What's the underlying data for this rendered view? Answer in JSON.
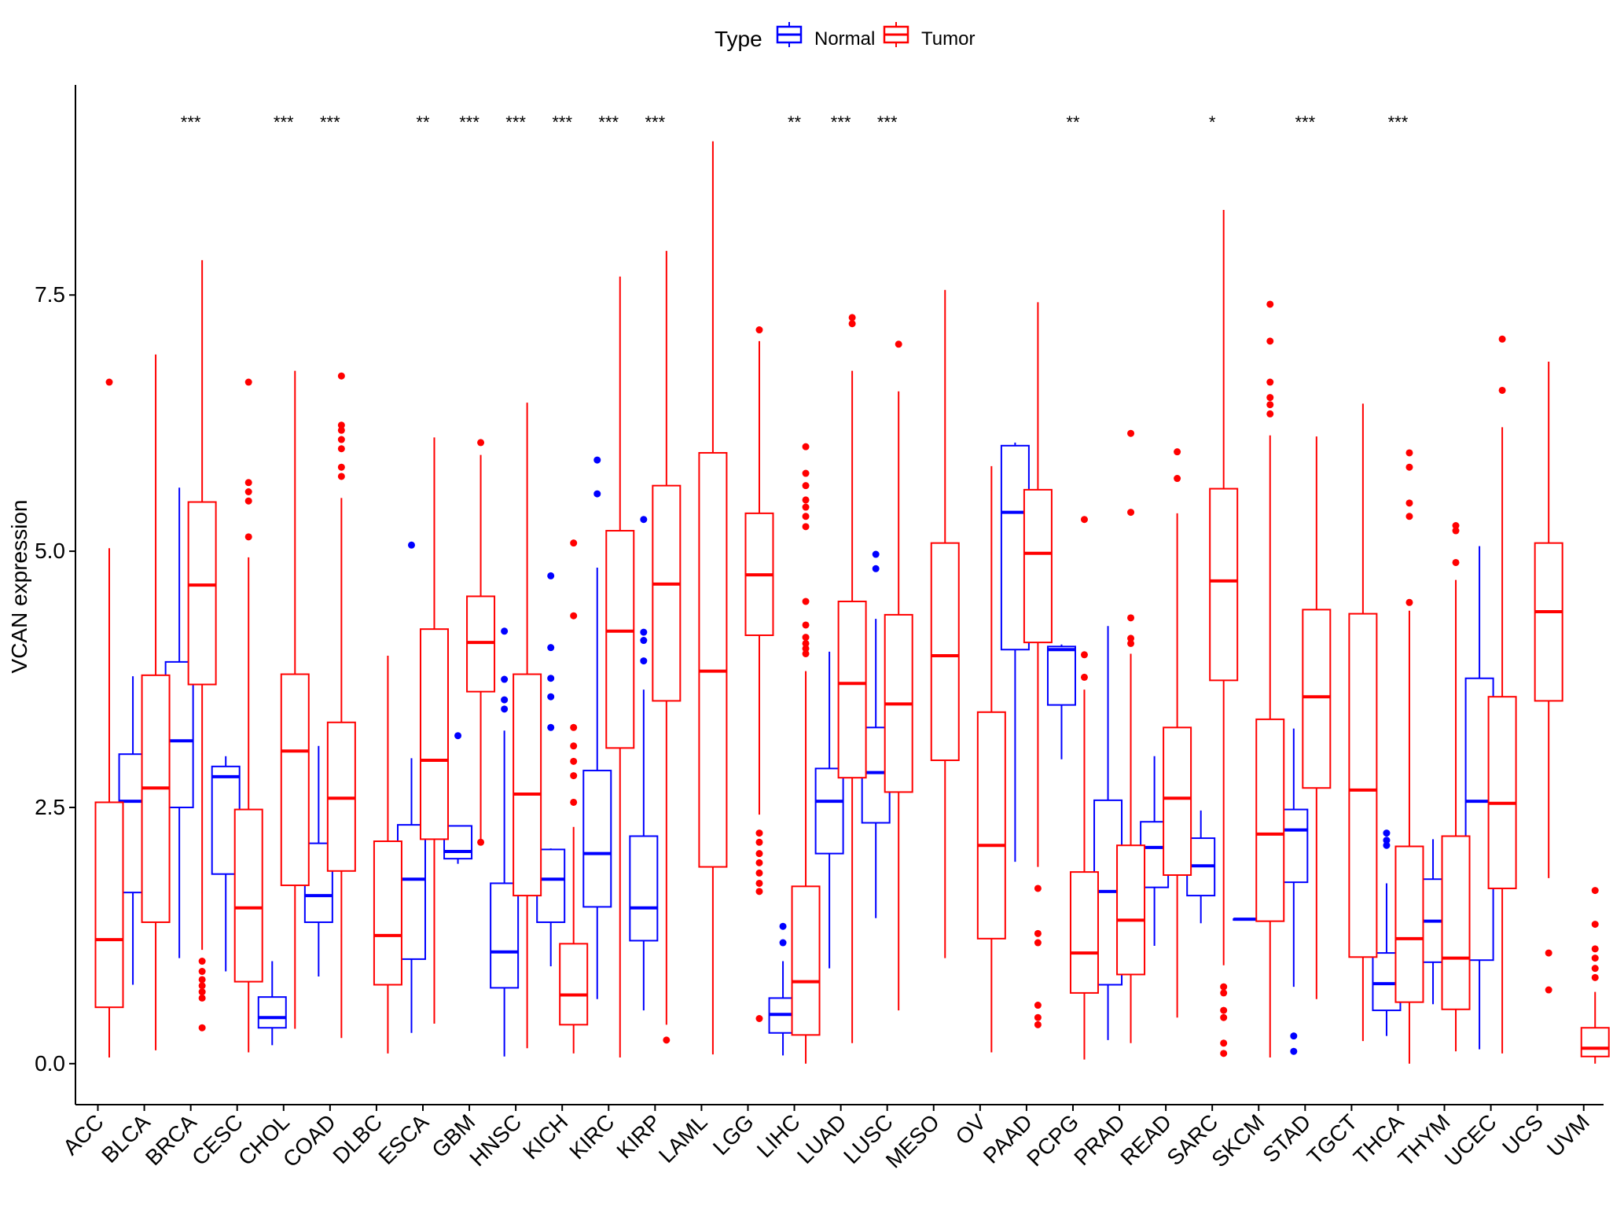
{
  "chart_data": {
    "type": "box",
    "xlabel": "",
    "ylabel": "VCAN expression",
    "ylim": [
      -0.4,
      9.55
    ],
    "yticks": [
      "0.0",
      "2.5",
      "5.0",
      "7.5"
    ],
    "ytick_values": [
      0,
      2.5,
      5,
      7.5
    ],
    "legend": {
      "title": "Type",
      "position": "top",
      "items": [
        {
          "label": "Normal",
          "color": "#0000ff"
        },
        {
          "label": "Tumor",
          "color": "#ff0000"
        }
      ]
    },
    "colors": {
      "Normal": "#0000ff",
      "Tumor": "#ff0000"
    },
    "categories": [
      "ACC",
      "BLCA",
      "BRCA",
      "CESC",
      "CHOL",
      "COAD",
      "DLBC",
      "ESCA",
      "GBM",
      "HNSC",
      "KICH",
      "KIRC",
      "KIRP",
      "LAML",
      "LGG",
      "LIHC",
      "LUAD",
      "LUSC",
      "MESO",
      "OV",
      "PAAD",
      "PCPG",
      "PRAD",
      "READ",
      "SARC",
      "SKCM",
      "STAD",
      "TGCT",
      "THCA",
      "THYM",
      "UCEC",
      "UCS",
      "UVM"
    ],
    "significance": [
      "",
      "",
      "***",
      "",
      "***",
      "***",
      "",
      "**",
      "***",
      "***",
      "***",
      "***",
      "***",
      "",
      "",
      "**",
      "***",
      "***",
      "",
      "",
      "",
      "**",
      "",
      "",
      "*",
      "",
      "***",
      "",
      "***",
      "",
      "",
      "",
      ""
    ],
    "series": [
      {
        "name": "Normal",
        "boxes": [
          null,
          {
            "whislo": 0.77,
            "q1": 1.67,
            "med": 2.56,
            "q3": 3.02,
            "whishi": 3.78,
            "fliers": []
          },
          {
            "whislo": 1.03,
            "q1": 2.5,
            "med": 3.15,
            "q3": 3.92,
            "whishi": 5.62,
            "fliers": []
          },
          {
            "whislo": 0.9,
            "q1": 1.85,
            "med": 2.8,
            "q3": 2.9,
            "whishi": 3.0,
            "fliers": []
          },
          {
            "whislo": 0.18,
            "q1": 0.35,
            "med": 0.45,
            "q3": 0.65,
            "whishi": 1.0,
            "fliers": []
          },
          {
            "whislo": 0.85,
            "q1": 1.38,
            "med": 1.64,
            "q3": 2.15,
            "whishi": 3.1,
            "fliers": []
          },
          null,
          {
            "whislo": 0.3,
            "q1": 1.02,
            "med": 1.8,
            "q3": 2.33,
            "whishi": 2.98,
            "fliers": [
              5.06
            ]
          },
          {
            "whislo": 1.95,
            "q1": 2.0,
            "med": 2.07,
            "q3": 2.32,
            "whishi": 2.32,
            "fliers": [
              3.2
            ]
          },
          {
            "whislo": 0.07,
            "q1": 0.74,
            "med": 1.09,
            "q3": 1.76,
            "whishi": 3.25,
            "fliers": [
              3.46,
              3.55,
              3.75,
              4.22
            ]
          },
          {
            "whislo": 0.95,
            "q1": 1.38,
            "med": 1.8,
            "q3": 2.09,
            "whishi": 2.1,
            "fliers": [
              3.28,
              3.58,
              3.76,
              4.06,
              4.76
            ]
          },
          {
            "whislo": 0.63,
            "q1": 1.53,
            "med": 2.05,
            "q3": 2.86,
            "whishi": 4.84,
            "fliers": [
              5.56,
              5.89
            ]
          },
          {
            "whislo": 0.52,
            "q1": 1.2,
            "med": 1.52,
            "q3": 2.22,
            "whishi": 3.65,
            "fliers": [
              3.93,
              4.13,
              4.21,
              5.31
            ]
          },
          null,
          null,
          {
            "whislo": 0.08,
            "q1": 0.3,
            "med": 0.48,
            "q3": 0.64,
            "whishi": 1.0,
            "fliers": [
              1.18,
              1.34
            ]
          },
          {
            "whislo": 0.93,
            "q1": 2.05,
            "med": 2.56,
            "q3": 2.88,
            "whishi": 4.02,
            "fliers": []
          },
          {
            "whislo": 1.42,
            "q1": 2.35,
            "med": 2.84,
            "q3": 3.28,
            "whishi": 4.34,
            "fliers": [
              4.83,
              4.97
            ]
          },
          null,
          null,
          {
            "whislo": 1.97,
            "q1": 4.04,
            "med": 5.38,
            "q3": 6.03,
            "whishi": 6.06,
            "fliers": []
          },
          {
            "whislo": 2.97,
            "q1": 3.5,
            "med": 4.04,
            "q3": 4.07,
            "whishi": 4.09,
            "fliers": []
          },
          {
            "whislo": 0.23,
            "q1": 0.77,
            "med": 1.68,
            "q3": 2.57,
            "whishi": 4.27,
            "fliers": []
          },
          {
            "whislo": 1.15,
            "q1": 1.72,
            "med": 2.11,
            "q3": 2.36,
            "whishi": 3.0,
            "fliers": []
          },
          {
            "whislo": 1.37,
            "q1": 1.64,
            "med": 1.93,
            "q3": 2.2,
            "whishi": 2.47,
            "fliers": []
          },
          {
            "whislo": 1.41,
            "q1": 1.41,
            "med": 1.41,
            "q3": 1.41,
            "whishi": 1.41,
            "fliers": []
          },
          {
            "whislo": 0.75,
            "q1": 1.77,
            "med": 2.28,
            "q3": 2.48,
            "whishi": 3.27,
            "fliers": [
              0.12,
              0.27
            ]
          },
          null,
          {
            "whislo": 0.27,
            "q1": 0.52,
            "med": 0.78,
            "q3": 1.08,
            "whishi": 1.76,
            "fliers": [
              2.13,
              2.18,
              2.25
            ]
          },
          {
            "whislo": 0.58,
            "q1": 0.99,
            "med": 1.39,
            "q3": 1.8,
            "whishi": 2.19,
            "fliers": []
          },
          {
            "whislo": 0.14,
            "q1": 1.01,
            "med": 2.56,
            "q3": 3.76,
            "whishi": 5.05,
            "fliers": []
          },
          null,
          null
        ]
      },
      {
        "name": "Tumor",
        "boxes": [
          {
            "whislo": 0.06,
            "q1": 0.55,
            "med": 1.21,
            "q3": 2.55,
            "whishi": 5.03,
            "fliers": [
              6.65
            ]
          },
          {
            "whislo": 0.13,
            "q1": 1.38,
            "med": 2.69,
            "q3": 3.79,
            "whishi": 6.92,
            "fliers": []
          },
          {
            "whislo": 1.11,
            "q1": 3.7,
            "med": 4.67,
            "q3": 5.48,
            "whishi": 7.84,
            "fliers": [
              0.35,
              0.64,
              0.7,
              0.76,
              0.82,
              0.9,
              1.0
            ]
          },
          {
            "whislo": 0.11,
            "q1": 0.8,
            "med": 1.52,
            "q3": 2.48,
            "whishi": 4.94,
            "fliers": [
              5.14,
              5.49,
              5.58,
              5.67,
              6.65
            ]
          },
          {
            "whislo": 0.34,
            "q1": 1.74,
            "med": 3.05,
            "q3": 3.8,
            "whishi": 6.76,
            "fliers": []
          },
          {
            "whislo": 0.25,
            "q1": 1.88,
            "med": 2.59,
            "q3": 3.33,
            "whishi": 5.52,
            "fliers": [
              5.73,
              5.82,
              6.0,
              6.09,
              6.18,
              6.23,
              6.71
            ]
          },
          {
            "whislo": 0.1,
            "q1": 0.77,
            "med": 1.25,
            "q3": 2.17,
            "whishi": 3.98,
            "fliers": []
          },
          {
            "whislo": 0.39,
            "q1": 2.19,
            "med": 2.96,
            "q3": 4.24,
            "whishi": 6.11,
            "fliers": []
          },
          {
            "whislo": 2.16,
            "q1": 3.63,
            "med": 4.11,
            "q3": 4.56,
            "whishi": 5.94,
            "fliers": [
              2.16,
              6.06
            ]
          },
          {
            "whislo": 0.15,
            "q1": 1.64,
            "med": 2.63,
            "q3": 3.8,
            "whishi": 6.45,
            "fliers": []
          },
          {
            "whislo": 0.1,
            "q1": 0.38,
            "med": 0.67,
            "q3": 1.17,
            "whishi": 2.31,
            "fliers": [
              2.55,
              2.81,
              2.95,
              3.1,
              3.28,
              4.37,
              5.08
            ]
          },
          {
            "whislo": 0.06,
            "q1": 3.08,
            "med": 4.22,
            "q3": 5.2,
            "whishi": 7.68,
            "fliers": []
          },
          {
            "whislo": 0.38,
            "q1": 3.54,
            "med": 4.68,
            "q3": 5.64,
            "whishi": 7.93,
            "fliers": [
              0.23
            ]
          },
          {
            "whislo": 0.09,
            "q1": 1.92,
            "med": 3.83,
            "q3": 5.96,
            "whishi": 9.0,
            "fliers": []
          },
          {
            "whislo": 2.43,
            "q1": 4.18,
            "med": 4.77,
            "q3": 5.37,
            "whishi": 7.05,
            "fliers": [
              0.44,
              1.68,
              1.76,
              1.86,
              1.96,
              2.05,
              2.16,
              2.25,
              7.16
            ]
          },
          {
            "whislo": 0.0,
            "q1": 0.28,
            "med": 0.8,
            "q3": 1.73,
            "whishi": 3.83,
            "fliers": [
              4.0,
              4.05,
              4.1,
              4.16,
              4.28,
              4.51,
              5.24,
              5.34,
              5.43,
              5.5,
              5.64,
              5.76,
              6.02
            ]
          },
          {
            "whislo": 0.2,
            "q1": 2.79,
            "med": 3.71,
            "q3": 4.51,
            "whishi": 6.76,
            "fliers": [
              7.22,
              7.28
            ]
          },
          {
            "whislo": 0.52,
            "q1": 2.65,
            "med": 3.51,
            "q3": 4.38,
            "whishi": 6.56,
            "fliers": [
              7.02
            ]
          },
          {
            "whislo": 1.03,
            "q1": 2.96,
            "med": 3.98,
            "q3": 5.08,
            "whishi": 7.55,
            "fliers": []
          },
          {
            "whislo": 0.11,
            "q1": 1.22,
            "med": 2.13,
            "q3": 3.43,
            "whishi": 5.83,
            "fliers": []
          },
          {
            "whislo": 1.92,
            "q1": 4.11,
            "med": 4.98,
            "q3": 5.6,
            "whishi": 7.43,
            "fliers": [
              0.38,
              0.45,
              0.57,
              1.18,
              1.27,
              1.71
            ]
          },
          {
            "whislo": 0.04,
            "q1": 0.69,
            "med": 1.08,
            "q3": 1.87,
            "whishi": 3.65,
            "fliers": [
              3.77,
              3.99,
              5.31
            ]
          },
          {
            "whislo": 0.2,
            "q1": 0.87,
            "med": 1.4,
            "q3": 2.13,
            "whishi": 4.0,
            "fliers": [
              4.1,
              4.15,
              4.35,
              5.38,
              6.15
            ]
          },
          {
            "whislo": 0.45,
            "q1": 1.84,
            "med": 2.59,
            "q3": 3.28,
            "whishi": 5.37,
            "fliers": [
              5.71,
              5.97
            ]
          },
          {
            "whislo": 0.96,
            "q1": 3.74,
            "med": 4.71,
            "q3": 5.61,
            "whishi": 8.33,
            "fliers": [
              0.1,
              0.2,
              0.45,
              0.52,
              0.69,
              0.75
            ]
          },
          {
            "whislo": 0.06,
            "q1": 1.39,
            "med": 2.24,
            "q3": 3.36,
            "whishi": 6.13,
            "fliers": [
              6.34,
              6.43,
              6.5,
              6.65,
              7.05,
              7.41
            ]
          },
          {
            "whislo": 0.63,
            "q1": 2.69,
            "med": 3.58,
            "q3": 4.43,
            "whishi": 6.12,
            "fliers": []
          },
          {
            "whislo": 0.22,
            "q1": 1.04,
            "med": 2.67,
            "q3": 4.39,
            "whishi": 6.44,
            "fliers": []
          },
          {
            "whislo": 0.0,
            "q1": 0.6,
            "med": 1.22,
            "q3": 2.12,
            "whishi": 4.42,
            "fliers": [
              4.5,
              5.34,
              5.47,
              5.82,
              5.96
            ]
          },
          {
            "whislo": 0.12,
            "q1": 0.53,
            "med": 1.03,
            "q3": 2.22,
            "whishi": 4.72,
            "fliers": [
              4.89,
              5.2,
              5.25
            ]
          },
          {
            "whislo": 0.1,
            "q1": 1.71,
            "med": 2.54,
            "q3": 3.58,
            "whishi": 6.21,
            "fliers": [
              6.57,
              7.07
            ]
          },
          {
            "whislo": 1.81,
            "q1": 3.54,
            "med": 4.41,
            "q3": 5.08,
            "whishi": 6.85,
            "fliers": [
              0.72,
              1.08
            ]
          },
          {
            "whislo": 0.0,
            "q1": 0.07,
            "med": 0.15,
            "q3": 0.35,
            "whishi": 0.7,
            "fliers": [
              0.84,
              0.93,
              1.03,
              1.12,
              1.36,
              1.69
            ]
          }
        ]
      }
    ]
  }
}
